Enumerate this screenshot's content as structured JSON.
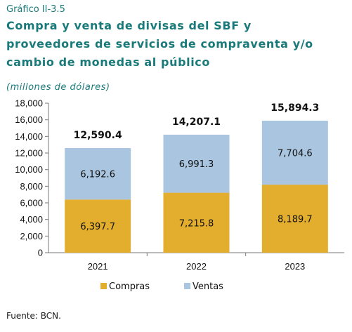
{
  "header": {
    "caption": "Gráfico II-3.5",
    "title": "Compra y venta de divisas del SBF y proveedores de servicios de compraventa y/o cambio de monedas al público",
    "subtitle": "(millones de dólares)"
  },
  "footer": {
    "source": "Fuente: BCN."
  },
  "colors": {
    "compras": "#e3ad2d",
    "ventas": "#a9c5e0",
    "axis": "#7a7a7a"
  },
  "chart_data": {
    "type": "bar",
    "stacked": true,
    "categories": [
      "2021",
      "2022",
      "2023"
    ],
    "series": [
      {
        "name": "Compras",
        "values": [
          6397.7,
          7215.8,
          8189.7
        ],
        "labels": [
          "6,397.7",
          "7,215.8",
          "8,189.7"
        ]
      },
      {
        "name": "Ventas",
        "values": [
          6192.6,
          6991.3,
          7704.6
        ],
        "labels": [
          "6,192.6",
          "6,991.3",
          "7,704.6"
        ]
      }
    ],
    "totals": [
      12590.4,
      14207.1,
      15894.3
    ],
    "total_labels": [
      "12,590.4",
      "14,207.1",
      "15,894.3"
    ],
    "ylim": [
      0,
      18000
    ],
    "yticks": [
      0,
      2000,
      4000,
      6000,
      8000,
      10000,
      12000,
      14000,
      16000,
      18000
    ],
    "ytick_labels": [
      "0",
      "2,000",
      "4,000",
      "6,000",
      "8,000",
      "10,000",
      "12,000",
      "14,000",
      "16,000",
      "18,000"
    ],
    "grid": false,
    "legend": "bottom"
  }
}
